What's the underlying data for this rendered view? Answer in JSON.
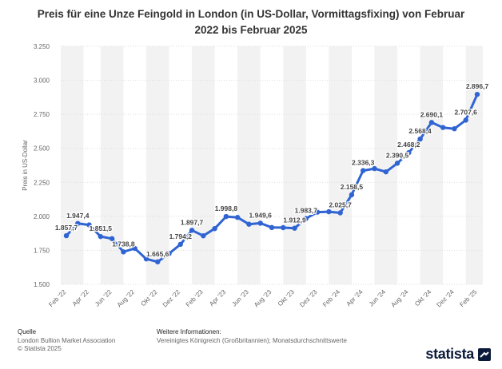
{
  "title": "Preis für eine Unze Feingold in London (in US-Dollar, Vormittagsfixing) von Februar 2022 bis Februar 2025",
  "footer": {
    "source_heading": "Quelle",
    "source_lines": [
      "London Bullion Market Association",
      "© Statista 2025"
    ],
    "info_heading": "Weitere Informationen:",
    "info_text": "Vereinigtes Königreich (Großbritannien); Monatsdurchschnittswerte"
  },
  "logo": {
    "text": "statista",
    "icon": "statista-logo-icon"
  },
  "colors": {
    "line": "#2f64d2",
    "band": "#f2f2f2",
    "grid": "#dddddd",
    "label": "#444444"
  },
  "chart_data": {
    "type": "line",
    "ylabel": "Preis in US-Dollar",
    "ylim": [
      1500,
      3250
    ],
    "yticks": [
      1500,
      1750,
      2000,
      2250,
      2500,
      2750,
      3000,
      3250
    ],
    "ytick_labels": [
      "1.500",
      "1.750",
      "2.000",
      "2.250",
      "2.500",
      "2.750",
      "3.000",
      "3.250"
    ],
    "x": [
      "Feb '22",
      "Mär '22",
      "Apr '22",
      "Mai '22",
      "Jun '22",
      "Jul '22",
      "Aug '22",
      "Sep '22",
      "Okt '22",
      "Nov '22",
      "Dez '22",
      "Jan '23",
      "Feb '23",
      "Mär '23",
      "Apr '23",
      "Mai '23",
      "Jun '23",
      "Jul '23",
      "Aug '23",
      "Sep '23",
      "Okt '23",
      "Nov '23",
      "Dez '23",
      "Jan '24",
      "Feb '24",
      "Mär '24",
      "Apr '24",
      "Mai '24",
      "Jun '24",
      "Jul '24",
      "Aug '24",
      "Sep '24",
      "Okt '24",
      "Nov '24",
      "Dez '24",
      "Jan '25",
      "Feb '25"
    ],
    "tick_labels_shown": [
      "Feb '22",
      "Apr '22",
      "Jun '22",
      "Aug '22",
      "Okt '22",
      "Dez '22",
      "Feb '23",
      "Apr '23",
      "Jun '23",
      "Aug '23",
      "Okt '23",
      "Dez '23",
      "Feb '24",
      "Apr '24",
      "Jun '24",
      "Aug '24",
      "Okt '24",
      "Dez '24",
      "Feb '25"
    ],
    "values": [
      1857.7,
      1947.4,
      1937.0,
      1851.5,
      1836.0,
      1738.8,
      1764.0,
      1687.0,
      1665.6,
      1726.0,
      1794.2,
      1897.7,
      1857.0,
      1910.0,
      1998.8,
      1992.0,
      1942.0,
      1949.6,
      1918.0,
      1917.0,
      1912.9,
      1983.7,
      2031.0,
      2034.0,
      2025.7,
      2158.5,
      2336.3,
      2351.0,
      2327.0,
      2390.5,
      2468.2,
      2568.4,
      2690.1,
      2653.0,
      2644.0,
      2707.6,
      2896.7
    ],
    "data_labels": [
      {
        "index": 0,
        "text": "1.857,7"
      },
      {
        "index": 1,
        "text": "1.947,4"
      },
      {
        "index": 3,
        "text": "1.851,5"
      },
      {
        "index": 5,
        "text": "1.738,8"
      },
      {
        "index": 8,
        "text": "1.665,6"
      },
      {
        "index": 10,
        "text": "1.794,2"
      },
      {
        "index": 11,
        "text": "1.897,7"
      },
      {
        "index": 14,
        "text": "1.998,8"
      },
      {
        "index": 17,
        "text": "1.949,6"
      },
      {
        "index": 20,
        "text": "1.912,9"
      },
      {
        "index": 21,
        "text": "1.983,7"
      },
      {
        "index": 24,
        "text": "2.025,7"
      },
      {
        "index": 25,
        "text": "2.158,5"
      },
      {
        "index": 26,
        "text": "2.336,3"
      },
      {
        "index": 29,
        "text": "2.390,5"
      },
      {
        "index": 30,
        "text": "2.468,2"
      },
      {
        "index": 31,
        "text": "2.568,4"
      },
      {
        "index": 32,
        "text": "2.690,1"
      },
      {
        "index": 35,
        "text": "2.707,6"
      },
      {
        "index": 36,
        "text": "2.896,7"
      }
    ],
    "grid": true,
    "legend": "none"
  }
}
